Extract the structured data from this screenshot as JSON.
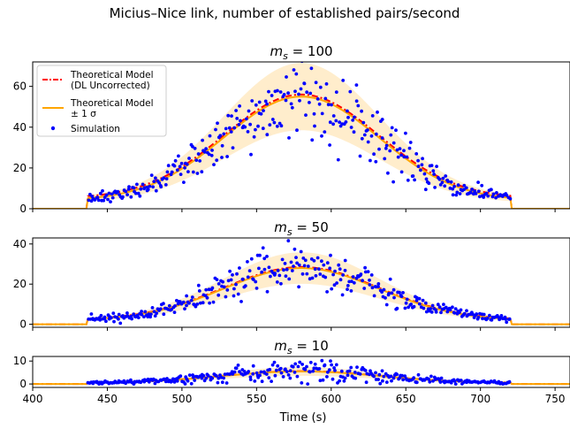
{
  "figure": {
    "suptitle": "Micius–Nice link, number of established pairs/second",
    "xlabel": "Time (s)",
    "legend": {
      "placement": "upper-left of top panel",
      "entries": [
        {
          "label_line1": "Theoretical Model",
          "label_line2": " (DL Uncorrected)",
          "color": "#ff0000",
          "style": "dash-dot"
        },
        {
          "label_line1": "Theoretical Model",
          "label_line2": " ± 1 σ",
          "color": "#ffa500",
          "style": "solid-with-band"
        },
        {
          "label_line1": "Simulation",
          "label_line2": "",
          "color": "#0000ff",
          "style": "dots"
        }
      ]
    }
  },
  "chart_data": [
    {
      "type": "scatter",
      "title_base": "m",
      "title_sub": "s",
      "title_value": "100",
      "xlim": [
        400,
        760
      ],
      "ylim": [
        0,
        72
      ],
      "xticks": [
        "400",
        "450",
        "500",
        "550",
        "600",
        "650",
        "700",
        "750"
      ],
      "yticks": [
        0,
        20,
        40,
        60
      ],
      "pass_window": [
        437,
        720
      ],
      "peak_time": 580,
      "model_peak": 55,
      "model_sigma": 52,
      "model_edge_value": 4,
      "dl_peak": 56,
      "dl_edge_value": 5,
      "band_halfwidth_fraction": 0.3,
      "outside_value": 0,
      "series": [
        {
          "name": "Theoretical Model\n (DL Uncorrected)",
          "color": "#ff0000"
        },
        {
          "name": "Theoretical Model\n ± 1 σ",
          "color": "#ffa500"
        },
        {
          "name": "Simulation",
          "color": "#0000ff",
          "n_points": 330,
          "noise_fraction": 0.18
        }
      ]
    },
    {
      "type": "scatter",
      "title_base": "m",
      "title_sub": "s",
      "title_value": "50",
      "xlim": [
        400,
        760
      ],
      "ylim": [
        -1.5,
        43
      ],
      "xticks": [
        "400",
        "450",
        "500",
        "550",
        "600",
        "650",
        "700",
        "750"
      ],
      "yticks": [
        0,
        20,
        40
      ],
      "pass_window": [
        437,
        720
      ],
      "peak_time": 580,
      "model_peak": 28,
      "model_sigma": 52,
      "model_edge_value": 2,
      "dl_peak": 28.5,
      "dl_edge_value": 2.2,
      "band_halfwidth_fraction": 0.28,
      "outside_value": 0,
      "series": [
        {
          "name": "Theoretical Model\n (DL Uncorrected)",
          "color": "#ff0000"
        },
        {
          "name": "Theoretical Model\n ± 1 σ",
          "color": "#ffa500"
        },
        {
          "name": "Simulation",
          "color": "#0000ff",
          "n_points": 330,
          "noise_fraction": 0.2
        }
      ]
    },
    {
      "type": "scatter",
      "title_base": "m",
      "title_sub": "s",
      "title_value": "10",
      "xlim": [
        400,
        760
      ],
      "ylim": [
        -1.5,
        12
      ],
      "xticks": [
        "400",
        "450",
        "500",
        "550",
        "600",
        "650",
        "700",
        "750"
      ],
      "yticks": [
        0,
        10
      ],
      "pass_window": [
        437,
        720
      ],
      "peak_time": 580,
      "model_peak": 5.5,
      "model_sigma": 52,
      "model_edge_value": 0.5,
      "dl_peak": 5.6,
      "dl_edge_value": 0.5,
      "band_halfwidth_fraction": 0.35,
      "outside_value": 0,
      "series": [
        {
          "name": "Theoretical Model\n (DL Uncorrected)",
          "color": "#ff0000"
        },
        {
          "name": "Theoretical Model\n ± 1 σ",
          "color": "#ffa500"
        },
        {
          "name": "Simulation",
          "color": "#0000ff",
          "n_points": 330,
          "noise_fraction": 0.45
        }
      ]
    }
  ]
}
